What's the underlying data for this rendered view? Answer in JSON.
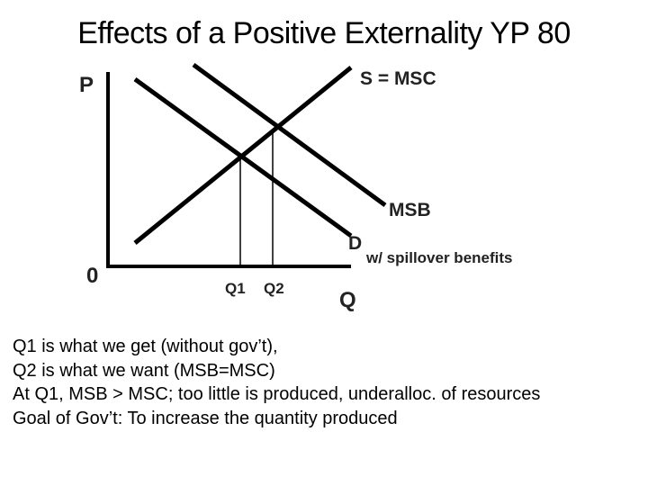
{
  "title": "Effects of a Positive Externality YP 80",
  "diagram": {
    "y_axis_label": "P",
    "x_axis_label": "Q",
    "origin_label": "0",
    "supply_label": "S = MSC",
    "msb_label": "MSB",
    "demand_label": "D",
    "demand_note": "w/ spillover benefits",
    "tick_labels": [
      "Q1",
      "Q2"
    ]
  },
  "notes": [
    "Q1 is what we get (without gov’t),",
    "Q2 is what we want (MSB=MSC)",
    "At Q1, MSB > MSC; too little is produced, underalloc. of resources",
    "Goal of Gov’t: To increase the quantity produced"
  ]
}
